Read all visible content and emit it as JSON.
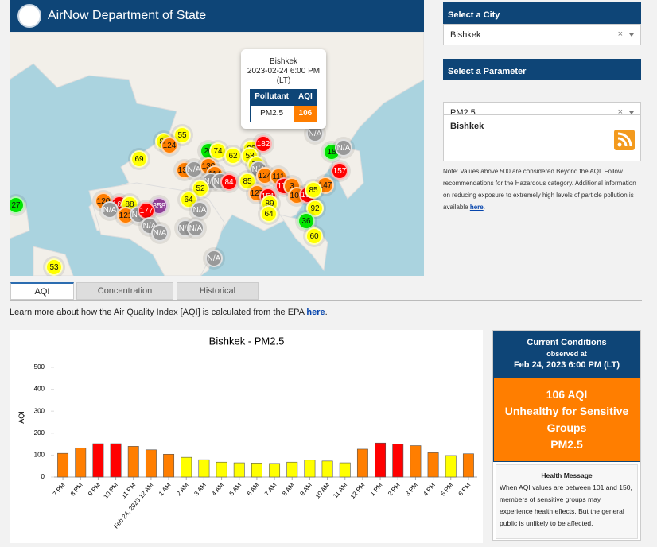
{
  "header": {
    "title": "AirNow Department of State"
  },
  "map": {
    "popup": {
      "city": "Bishkek",
      "datetime": "2023-02-24 6:00 PM",
      "timezone": "(LT)",
      "columns": [
        "Pollutant",
        "AQI"
      ],
      "row": [
        "PM2.5",
        "106"
      ]
    },
    "markers": [
      {
        "label": "55",
        "color": "#ffff00"
      },
      {
        "label": "83",
        "color": "#ffff00"
      },
      {
        "label": "124",
        "color": "#ff7e00"
      },
      {
        "label": "69",
        "color": "#ffff00"
      },
      {
        "label": "20",
        "color": "#00e400"
      },
      {
        "label": "74",
        "color": "#ffff00"
      },
      {
        "label": "62",
        "color": "#ffff00"
      },
      {
        "label": "89",
        "color": "#ffff00"
      },
      {
        "label": "182",
        "color": "#ff0000"
      },
      {
        "label": "53",
        "color": "#ffff00"
      },
      {
        "label": "18",
        "color": "#00e400"
      },
      {
        "label": "N/A",
        "color": "#999999"
      },
      {
        "label": "N/A",
        "color": "#999999"
      },
      {
        "label": "139",
        "color": "#ff7e00"
      },
      {
        "label": "N/A",
        "color": "#999999"
      },
      {
        "label": "130",
        "color": "#ff7e00"
      },
      {
        "label": "70",
        "color": "#ffff00"
      },
      {
        "label": "N/A",
        "color": "#999999"
      },
      {
        "label": "157",
        "color": "#ff0000"
      },
      {
        "label": "114",
        "color": "#ff7e00"
      },
      {
        "label": "N/A",
        "color": "#999999"
      },
      {
        "label": "N/A",
        "color": "#999999"
      },
      {
        "label": "84",
        "color": "#ff0000"
      },
      {
        "label": "85",
        "color": "#ffff00"
      },
      {
        "label": "124",
        "color": "#ff7e00"
      },
      {
        "label": "111",
        "color": "#ff7e00"
      },
      {
        "label": "52",
        "color": "#ffff00"
      },
      {
        "label": "172",
        "color": "#ff0000"
      },
      {
        "label": "3",
        "color": "#ff7e00"
      },
      {
        "label": "147",
        "color": "#ff7e00"
      },
      {
        "label": "127",
        "color": "#ff7e00"
      },
      {
        "label": "151",
        "color": "#ff0000"
      },
      {
        "label": "105",
        "color": "#ff7e00"
      },
      {
        "label": "153",
        "color": "#ff0000"
      },
      {
        "label": "85",
        "color": "#ffff00"
      },
      {
        "label": "64",
        "color": "#ffff00"
      },
      {
        "label": "89",
        "color": "#ffff00"
      },
      {
        "label": "92",
        "color": "#ffff00"
      },
      {
        "label": "120",
        "color": "#ff7e00"
      },
      {
        "label": "163",
        "color": "#ff0000"
      },
      {
        "label": "88",
        "color": "#ffff00"
      },
      {
        "label": "358",
        "color": "#8f3f97"
      },
      {
        "label": "N/A",
        "color": "#999999"
      },
      {
        "label": "121",
        "color": "#ff7e00"
      },
      {
        "label": "N/A",
        "color": "#999999"
      },
      {
        "label": "177",
        "color": "#ff0000"
      },
      {
        "label": "N/A",
        "color": "#999999"
      },
      {
        "label": "64",
        "color": "#ffff00"
      },
      {
        "label": "27",
        "color": "#00e400"
      },
      {
        "label": "N/A",
        "color": "#999999"
      },
      {
        "label": "N/A",
        "color": "#999999"
      },
      {
        "label": "N/A",
        "color": "#999999"
      },
      {
        "label": "N/A",
        "color": "#999999"
      },
      {
        "label": "36",
        "color": "#00e400"
      },
      {
        "label": "60",
        "color": "#ffff00"
      },
      {
        "label": "N/A",
        "color": "#999999"
      },
      {
        "label": "53",
        "color": "#ffff00"
      }
    ]
  },
  "sidebar": {
    "city": {
      "label": "Select a City",
      "value": "Bishkek",
      "clear": "×"
    },
    "parameter": {
      "label": "Select a Parameter",
      "value": "PM2.5",
      "clear": "×"
    },
    "info": {
      "title": "Bishkek"
    },
    "note": {
      "text": "Note: Values above 500 are considered Beyond the AQI. Follow recommendations for the Hazardous category. Additional information on reducing exposure to extremely high levels of particle pollution is available ",
      "link": "here",
      "end": "."
    }
  },
  "tabs": [
    "AQI",
    "Concentration",
    "Historical"
  ],
  "learn_more": {
    "text": "Learn more about how the Air Quality Index [AQI] is calculated from the EPA ",
    "link": "here",
    "end": "."
  },
  "chart_data": {
    "type": "bar",
    "title": "Bishkek - PM2.5",
    "y_label": "AQI",
    "categories": [
      "7 PM",
      "8 PM",
      "9 PM",
      "10 PM",
      "11 PM",
      "Feb 24, 2023 12 AM",
      "1 AM",
      "2 AM",
      "3 AM",
      "4 AM",
      "5 AM",
      "6 AM",
      "7 AM",
      "8 AM",
      "9 AM",
      "10 AM",
      "11 AM",
      "12 PM",
      "1 PM",
      "2 PM",
      "3 PM",
      "4 PM",
      "5 PM",
      "6 PM"
    ],
    "values": [
      108,
      133,
      152,
      152,
      140,
      124,
      104,
      90,
      79,
      68,
      65,
      64,
      62,
      68,
      77,
      73,
      65,
      127,
      155,
      151,
      143,
      111,
      98,
      106
    ],
    "colors": [
      "#ff7e00",
      "#ff7e00",
      "#ff0000",
      "#ff0000",
      "#ff7e00",
      "#ff7e00",
      "#ff7e00",
      "#ffff00",
      "#ffff00",
      "#ffff00",
      "#ffff00",
      "#ffff00",
      "#ffff00",
      "#ffff00",
      "#ffff00",
      "#ffff00",
      "#ffff00",
      "#ff7e00",
      "#ff0000",
      "#ff0000",
      "#ff7e00",
      "#ff7e00",
      "#ffff00",
      "#ff7e00"
    ],
    "ylim": [
      0,
      500
    ],
    "yticks": [
      0,
      100,
      200,
      300,
      400,
      500
    ],
    "grid": false
  },
  "conditions": {
    "title": "Current Conditions",
    "observed": "observed at",
    "datetime": "Feb 24, 2023 6:00 PM (LT)",
    "aqi": "106 AQI",
    "category": "Unhealthy for Sensitive Groups",
    "pollutant": "PM2.5",
    "health_title": "Health Message",
    "health_text": "When AQI values are between 101 and 150, members of sensitive groups may experience health effects. But the general public is unlikely to be affected."
  }
}
